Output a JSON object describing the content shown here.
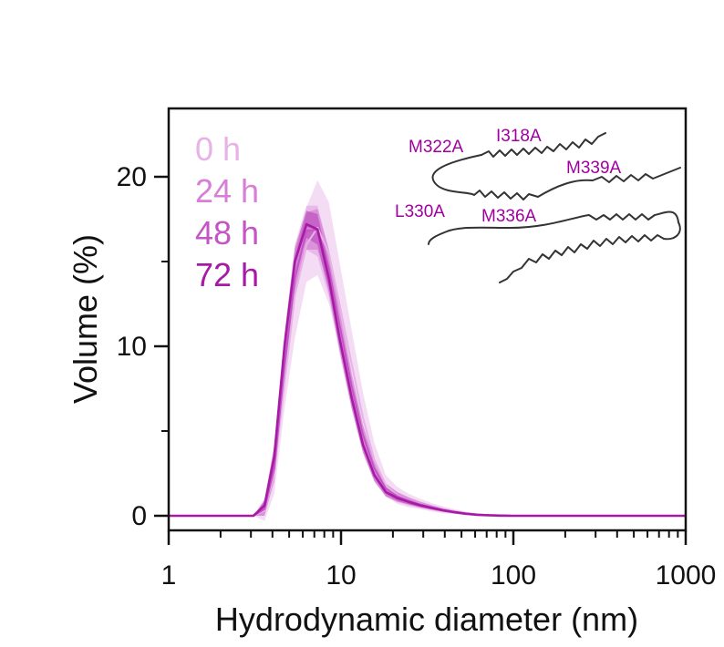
{
  "colors": {
    "axis": "#111111",
    "h0": "#e6b3e6",
    "h24": "#d77fd7",
    "h48": "#c455c4",
    "h72": "#a61aa6",
    "annotation": "#a000a0",
    "structure": "#333333"
  },
  "chart_data": {
    "type": "line",
    "title": "",
    "xlabel": "Hydrodynamic diameter (nm)",
    "ylabel": "Volume (%)",
    "xscale": "log",
    "xlim": [
      1,
      1000
    ],
    "ylim": [
      -0.8,
      24
    ],
    "xticks": [
      {
        "value": 1,
        "label": "1"
      },
      {
        "value": 10,
        "label": "10"
      },
      {
        "value": 100,
        "label": "100"
      },
      {
        "value": 1000,
        "label": "1000"
      }
    ],
    "yticks": [
      {
        "value": 0,
        "label": "0"
      },
      {
        "value": 10,
        "label": "10"
      },
      {
        "value": 20,
        "label": "20"
      }
    ],
    "grid": false,
    "legend": "top-left",
    "x": [
      1,
      3.1,
      3.6,
      4.1,
      4.7,
      5.4,
      6.3,
      7.3,
      8.5,
      9.8,
      11.5,
      13.4,
      15.6,
      18.2,
      21.2,
      24.7,
      28.8,
      33.6,
      39.1,
      45.6,
      53.1,
      61.9,
      72.1,
      84.1,
      98,
      200,
      500,
      1000
    ],
    "series": [
      {
        "name": "0 h",
        "color": "#e6b3e6",
        "values": [
          0,
          0,
          0.3,
          2.5,
          7.8,
          13,
          16,
          17,
          15.5,
          12.5,
          9,
          5.8,
          3.3,
          1.8,
          1.2,
          0.9,
          0.7,
          0.5,
          0.35,
          0.25,
          0.15,
          0.08,
          0.04,
          0.02,
          0,
          0,
          0,
          0
        ],
        "band": [
          0,
          0,
          0.6,
          1.2,
          1.5,
          2.5,
          2.2,
          2.8,
          3,
          2.5,
          2,
          1.5,
          1,
          0.6,
          0.5,
          0.4,
          0.3,
          0.25,
          0.2,
          0.15,
          0.1,
          0.05,
          0.03,
          0.02,
          0,
          0,
          0,
          0
        ]
      },
      {
        "name": "24 h",
        "color": "#d77fd7",
        "values": [
          0,
          0,
          0.5,
          3.2,
          9.5,
          14.5,
          17,
          16.8,
          14.3,
          10.8,
          7.3,
          4.5,
          2.6,
          1.5,
          1.1,
          0.85,
          0.65,
          0.48,
          0.33,
          0.22,
          0.13,
          0.07,
          0.03,
          0.01,
          0,
          0,
          0,
          0
        ],
        "band": [
          0,
          0,
          0.5,
          1,
          1.2,
          1.5,
          1.3,
          1.5,
          1.4,
          1.2,
          1,
          0.8,
          0.6,
          0.4,
          0.3,
          0.25,
          0.2,
          0.15,
          0.12,
          0.1,
          0.06,
          0.04,
          0.02,
          0.01,
          0,
          0,
          0,
          0
        ]
      },
      {
        "name": "48 h",
        "color": "#c455c4",
        "values": [
          0,
          0,
          0.4,
          2.8,
          8.8,
          14,
          16.8,
          16.9,
          14.6,
          11.3,
          7.7,
          4.8,
          2.8,
          1.6,
          1.15,
          0.88,
          0.67,
          0.5,
          0.34,
          0.23,
          0.14,
          0.07,
          0.03,
          0.01,
          0,
          0,
          0,
          0
        ],
        "band": [
          0,
          0,
          0.4,
          0.8,
          1,
          1.2,
          1.1,
          1.2,
          1.1,
          1,
          0.8,
          0.6,
          0.45,
          0.3,
          0.25,
          0.2,
          0.15,
          0.12,
          0.1,
          0.08,
          0.05,
          0.03,
          0.02,
          0.01,
          0,
          0,
          0,
          0
        ]
      },
      {
        "name": "72 h",
        "color": "#a61aa6",
        "values": [
          0,
          0,
          0.6,
          3.5,
          10,
          15,
          17.2,
          16.9,
          14,
          10.5,
          7,
          4.2,
          2.4,
          1.4,
          1.05,
          0.82,
          0.62,
          0.46,
          0.32,
          0.21,
          0.12,
          0.06,
          0.03,
          0.01,
          0,
          0,
          0,
          0
        ],
        "band": [
          0,
          0,
          0.3,
          0.6,
          0.7,
          0.8,
          0.8,
          0.9,
          0.8,
          0.7,
          0.6,
          0.45,
          0.35,
          0.25,
          0.2,
          0.15,
          0.12,
          0.1,
          0.08,
          0.06,
          0.04,
          0.02,
          0.01,
          0.01,
          0,
          0,
          0,
          0
        ]
      }
    ],
    "annotations": [
      "M322A",
      "I318A",
      "M339A",
      "L330A",
      "M336A"
    ]
  }
}
